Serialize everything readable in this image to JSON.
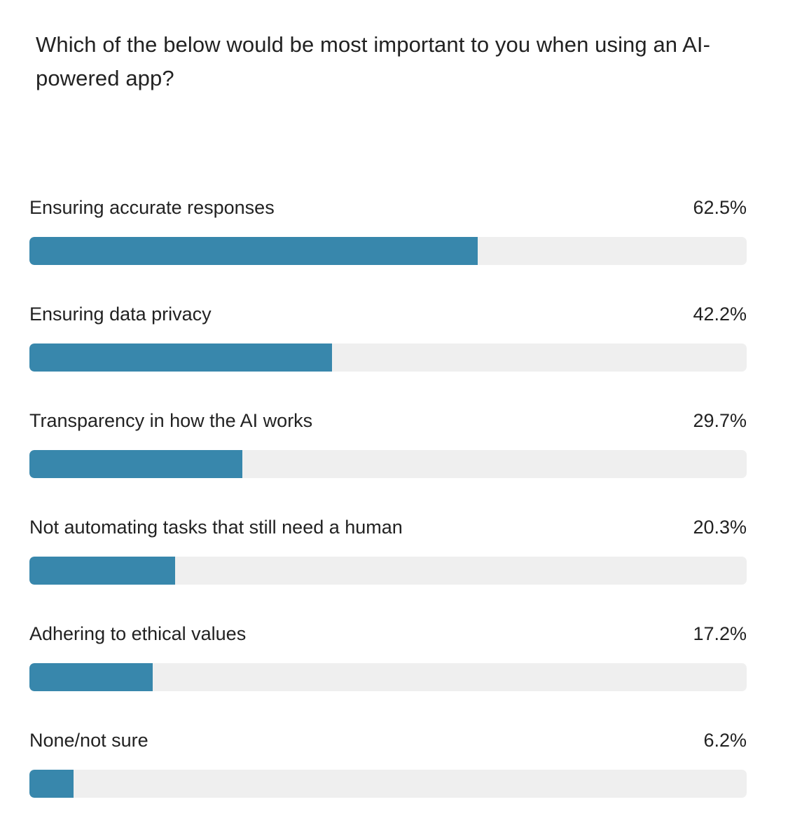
{
  "question": "Which of the below would be most important to you when using an AI-powered app?",
  "colors": {
    "bar_fill": "#3887ac",
    "bar_track": "#efefef",
    "text": "#222222"
  },
  "chart_data": {
    "type": "bar",
    "orientation": "horizontal",
    "title": "Which of the below would be most important to you when using an AI-powered app?",
    "unit": "%",
    "xlim": [
      0,
      100
    ],
    "grid": false,
    "legend": "none",
    "categories": [
      "Ensuring accurate responses",
      "Ensuring data privacy",
      "Transparency in how the AI works",
      "Not automating tasks that still need a human",
      "Adhering to ethical values",
      "None/not sure"
    ],
    "values": [
      62.5,
      42.2,
      29.7,
      20.3,
      17.2,
      6.2
    ],
    "value_labels": [
      "62.5%",
      "42.2%",
      "29.7%",
      "20.3%",
      "17.2%",
      "6.2%"
    ]
  }
}
